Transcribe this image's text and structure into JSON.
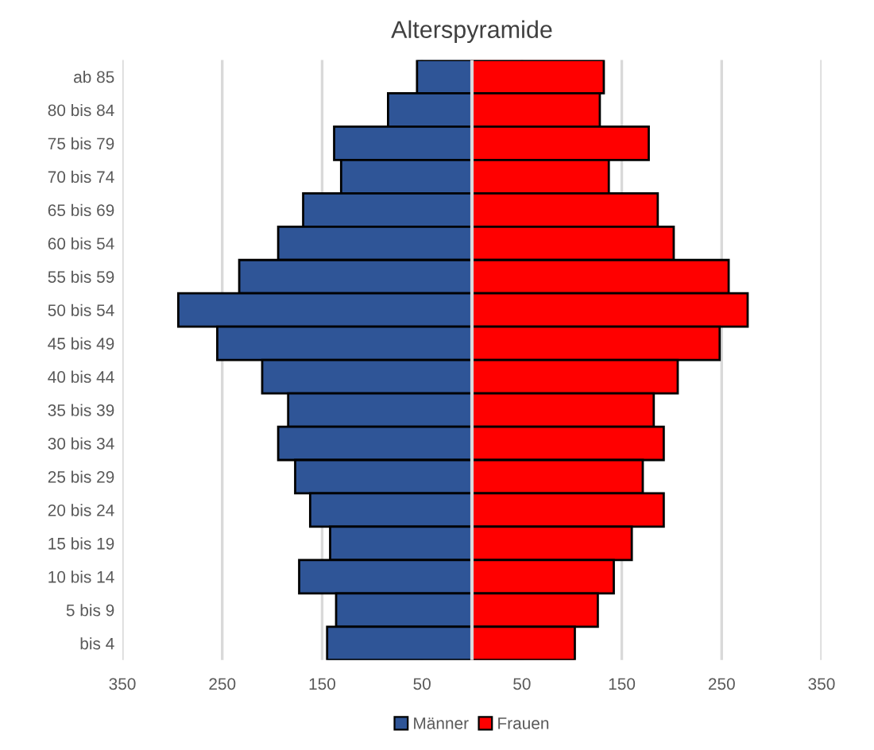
{
  "chart_data": {
    "type": "bar",
    "orientation": "horizontal",
    "title": "Alterspyramide",
    "categories": [
      "ab 85",
      "80 bis 84",
      "75 bis 79",
      "70 bis 74",
      "65 bis 69",
      "60 bis 54",
      "55 bis 59",
      "50 bis 54",
      "45 bis 49",
      "40 bis 44",
      "35 bis 39",
      "30 bis 34",
      "25 bis 29",
      "20 bis 24",
      "15 bis 19",
      "10 bis 14",
      "5 bis 9",
      "bis 4"
    ],
    "series": [
      {
        "name": "Männer",
        "color": "#2f5597",
        "values": [
          -55,
          -84,
          -138,
          -131,
          -169,
          -194,
          -233,
          -294,
          -255,
          -210,
          -184,
          -194,
          -177,
          -162,
          -142,
          -173,
          -136,
          -145
        ]
      },
      {
        "name": "Frauen",
        "color": "#ff0000",
        "values": [
          132,
          128,
          177,
          137,
          186,
          202,
          257,
          276,
          248,
          206,
          182,
          192,
          171,
          192,
          160,
          142,
          126,
          103
        ]
      }
    ],
    "xlim": [
      -350,
      350
    ],
    "xticks": [
      {
        "value": -350,
        "label": "350"
      },
      {
        "value": -250,
        "label": "250"
      },
      {
        "value": -150,
        "label": "150"
      },
      {
        "value": -50,
        "label": "50"
      },
      50,
      150,
      250,
      350
    ],
    "stacked": true,
    "grid": "x",
    "legend": "bottom"
  }
}
